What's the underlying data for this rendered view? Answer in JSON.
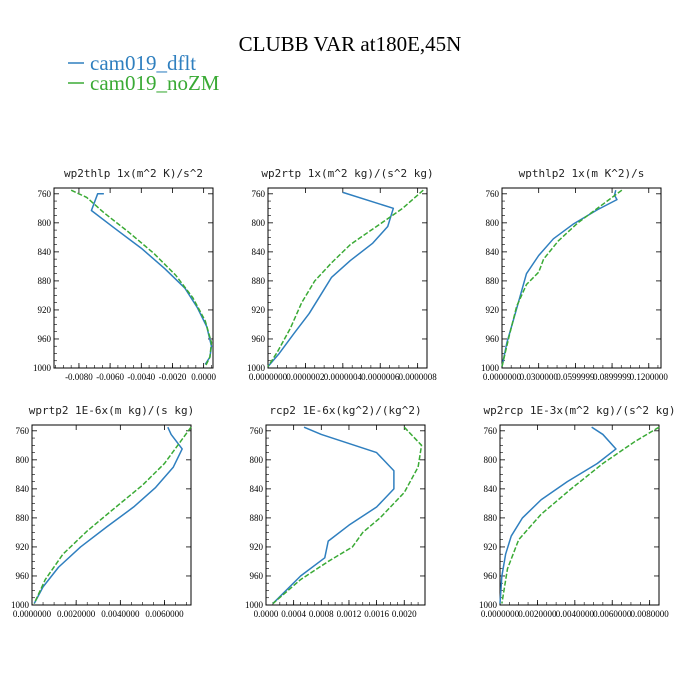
{
  "figure": {
    "title": "CLUBB VAR at180E,45N"
  },
  "colors": {
    "cam019_dflt": "#2f7fbf",
    "cam019_noZM": "#3aaa35"
  },
  "chart_data": [
    {
      "type": "line",
      "title": "wp2thlp  1x(m^2 K)/s^2",
      "legend": [
        "cam019_dflt",
        "cam019_noZM"
      ],
      "legend_placement": "top-left",
      "grid": false,
      "xlim": [
        -0.0096,
        0.0006
      ],
      "ylim": [
        1000,
        752
      ],
      "y_inverted": true,
      "xticks": [
        -0.008,
        -0.006,
        -0.004,
        -0.002,
        0.0
      ],
      "xtick_labels": [
        "-0.0080",
        "-0.0060",
        "-0.0040",
        "-0.0020",
        "0.0000"
      ],
      "yticks": [
        760,
        800,
        840,
        880,
        920,
        960,
        1000
      ],
      "ytick_labels": [
        "760",
        "800",
        "840",
        "880",
        "920",
        "960",
        "1000"
      ],
      "series": [
        {
          "name": "cam019_dflt",
          "style": "solid",
          "x": [
            -0.0064,
            -0.0068,
            -0.0072,
            -0.0058,
            -0.004,
            -0.0025,
            -0.0012,
            -0.0004,
            0.0002,
            0.0005,
            0.0004,
            0.0001
          ],
          "y": [
            760,
            760,
            783,
            806,
            835,
            863,
            890,
            917,
            943,
            970,
            985,
            995
          ]
        },
        {
          "name": "cam019_noZM",
          "style": "dashed",
          "x": [
            -0.0085,
            -0.0075,
            -0.0064,
            -0.0048,
            -0.0032,
            -0.0018,
            -0.0007,
            0.0001,
            0.0005,
            0.0004,
            0.0001
          ],
          "y": [
            755,
            765,
            786,
            813,
            842,
            872,
            903,
            935,
            965,
            985,
            998
          ]
        }
      ]
    },
    {
      "type": "line",
      "title": "wp2rtp  1x(m^2 kg)/(s^2 kg)",
      "legend": [
        "cam019_dflt",
        "cam019_noZM"
      ],
      "legend_placement": "top-left",
      "grid": false,
      "xlim": [
        0.0,
        8.5e-07
      ],
      "ylim": [
        1000,
        752
      ],
      "y_inverted": true,
      "xticks": [
        0.0,
        2e-07,
        4e-07,
        6e-07,
        8e-07
      ],
      "xtick_labels": [
        "0.0000000",
        "0.0000002",
        "0.0000004",
        "0.0000006",
        "0.0000008"
      ],
      "yticks": [
        760,
        800,
        840,
        880,
        920,
        960,
        1000
      ],
      "ytick_labels": [
        "760",
        "800",
        "840",
        "880",
        "920",
        "960",
        "1000"
      ],
      "series": [
        {
          "name": "cam019_dflt",
          "style": "solid",
          "x": [
            4e-07,
            6.7e-07,
            6.4e-07,
            5.6e-07,
            4.4e-07,
            3.4e-07,
            2.8e-07,
            2.2e-07,
            1.4e-07,
            6e-08,
            0.0
          ],
          "y": [
            758,
            780,
            805,
            828,
            852,
            875,
            900,
            925,
            952,
            980,
            998
          ]
        },
        {
          "name": "cam019_noZM",
          "style": "dashed",
          "x": [
            8.3e-07,
            7.2e-07,
            5.8e-07,
            4.4e-07,
            3.4e-07,
            2.5e-07,
            1.8e-07,
            1.2e-07,
            5e-08,
            0.0
          ],
          "y": [
            755,
            780,
            805,
            830,
            855,
            880,
            910,
            945,
            978,
            998
          ]
        }
      ]
    },
    {
      "type": "line",
      "title": "wpthlp2  1x(m K^2)/s",
      "legend": [
        "cam019_dflt",
        "cam019_noZM"
      ],
      "legend_placement": "top-left",
      "grid": false,
      "xlim": [
        0.0,
        0.13
      ],
      "ylim": [
        1000,
        752
      ],
      "y_inverted": true,
      "xticks": [
        0.0,
        0.03,
        0.06,
        0.09,
        0.12
      ],
      "xtick_labels": [
        "0.0000000",
        "0.0300000",
        "0.0599999",
        "0.0899999",
        "0.1200000"
      ],
      "yticks": [
        760,
        800,
        840,
        880,
        920,
        960,
        1000
      ],
      "ytick_labels": [
        "760",
        "800",
        "840",
        "880",
        "920",
        "960",
        "1000"
      ],
      "series": [
        {
          "name": "cam019_dflt",
          "style": "solid",
          "x": [
            0.093,
            0.092,
            0.094,
            0.078,
            0.058,
            0.042,
            0.03,
            0.02,
            0.015,
            0.01,
            0.004,
            0.0
          ],
          "y": [
            755,
            762,
            768,
            782,
            802,
            822,
            845,
            870,
            900,
            930,
            965,
            998
          ]
        },
        {
          "name": "cam019_noZM",
          "style": "dashed",
          "x": [
            0.098,
            0.082,
            0.062,
            0.046,
            0.034,
            0.03,
            0.02,
            0.012,
            0.006,
            0.0
          ],
          "y": [
            755,
            775,
            800,
            825,
            850,
            868,
            885,
            915,
            955,
            998
          ]
        }
      ]
    },
    {
      "type": "line",
      "title": "wprtp2  1E-6x(m kg)/(s kg)",
      "legend": [
        "cam019_dflt",
        "cam019_noZM"
      ],
      "legend_placement": "top-left",
      "grid": false,
      "xlim": [
        0.0,
        0.0072
      ],
      "ylim": [
        1000,
        752
      ],
      "y_inverted": true,
      "xticks": [
        0.0,
        0.002,
        0.004,
        0.006
      ],
      "xtick_labels": [
        "0.0000000",
        "0.0020000",
        "0.0040000",
        "0.0060000"
      ],
      "yticks": [
        760,
        800,
        840,
        880,
        920,
        960,
        1000
      ],
      "ytick_labels": [
        "760",
        "800",
        "840",
        "880",
        "920",
        "960",
        "1000"
      ],
      "series": [
        {
          "name": "cam019_dflt",
          "style": "solid",
          "x": [
            0.00615,
            0.0063,
            0.0068,
            0.0064,
            0.0056,
            0.0046,
            0.0034,
            0.0022,
            0.0012,
            0.0005,
            0.0001
          ],
          "y": [
            755,
            765,
            785,
            810,
            838,
            865,
            892,
            920,
            948,
            975,
            998
          ]
        },
        {
          "name": "cam019_noZM",
          "style": "dashed",
          "x": [
            0.0072,
            0.0066,
            0.006,
            0.005,
            0.0038,
            0.0025,
            0.0014,
            0.0006,
            0.0001
          ],
          "y": [
            755,
            780,
            805,
            835,
            865,
            898,
            930,
            965,
            998
          ]
        }
      ]
    },
    {
      "type": "line",
      "title": "rcp2  1E-6x(kg^2)/(kg^2)",
      "legend": [
        "cam019_dflt",
        "cam019_noZM"
      ],
      "legend_placement": "top-left",
      "grid": false,
      "xlim": [
        0.0,
        0.0023
      ],
      "ylim": [
        1000,
        752
      ],
      "y_inverted": true,
      "xticks": [
        0.0,
        0.0004,
        0.0008,
        0.0012,
        0.0016,
        0.002
      ],
      "xtick_labels": [
        "0.0000",
        "0.0004",
        "0.0008",
        "0.0012",
        "0.0016",
        "0.0020"
      ],
      "yticks": [
        760,
        800,
        840,
        880,
        920,
        960,
        1000
      ],
      "ytick_labels": [
        "760",
        "800",
        "840",
        "880",
        "920",
        "960",
        "1000"
      ],
      "series": [
        {
          "name": "cam019_dflt",
          "style": "solid",
          "x": [
            0.00055,
            0.0008,
            0.0016,
            0.00185,
            0.00185,
            0.0016,
            0.0012,
            0.0009,
            0.00085,
            0.0005,
            0.0001
          ],
          "y": [
            755,
            765,
            790,
            815,
            840,
            865,
            890,
            912,
            935,
            960,
            998
          ]
        },
        {
          "name": "cam019_noZM",
          "style": "dashed",
          "x": [
            0.002,
            0.00225,
            0.0022,
            0.002,
            0.00165,
            0.0014,
            0.00125,
            0.0009,
            0.0005,
            0.0001
          ],
          "y": [
            755,
            780,
            810,
            845,
            880,
            900,
            920,
            940,
            965,
            998
          ]
        }
      ]
    },
    {
      "type": "line",
      "title": "wp2rcp  1E-3x(m^2 kg)/(s^2 kg)",
      "legend": [
        "cam019_dflt",
        "cam019_noZM"
      ],
      "legend_placement": "top-left",
      "grid": false,
      "xlim": [
        0.0,
        0.0085
      ],
      "ylim": [
        1000,
        752
      ],
      "y_inverted": true,
      "xticks": [
        0.0,
        0.002,
        0.004,
        0.006,
        0.008
      ],
      "xtick_labels": [
        "0.0000000",
        "0.0020000",
        "0.0040000",
        "0.0060000",
        "0.0080000"
      ],
      "yticks": [
        760,
        800,
        840,
        880,
        920,
        960,
        1000
      ],
      "ytick_labels": [
        "760",
        "800",
        "840",
        "880",
        "920",
        "960",
        "1000"
      ],
      "series": [
        {
          "name": "cam019_dflt",
          "style": "solid",
          "x": [
            0.0049,
            0.0055,
            0.0062,
            0.0052,
            0.0036,
            0.0022,
            0.0012,
            0.0006,
            0.0003,
            0.0001,
            0.0
          ],
          "y": [
            755,
            765,
            785,
            805,
            830,
            855,
            880,
            905,
            930,
            960,
            998
          ]
        },
        {
          "name": "cam019_noZM",
          "style": "dashed",
          "x": [
            0.0085,
            0.0072,
            0.0055,
            0.0038,
            0.0022,
            0.001,
            0.0004,
            0.0001
          ],
          "y": [
            755,
            775,
            805,
            840,
            875,
            910,
            950,
            998
          ]
        }
      ]
    }
  ]
}
